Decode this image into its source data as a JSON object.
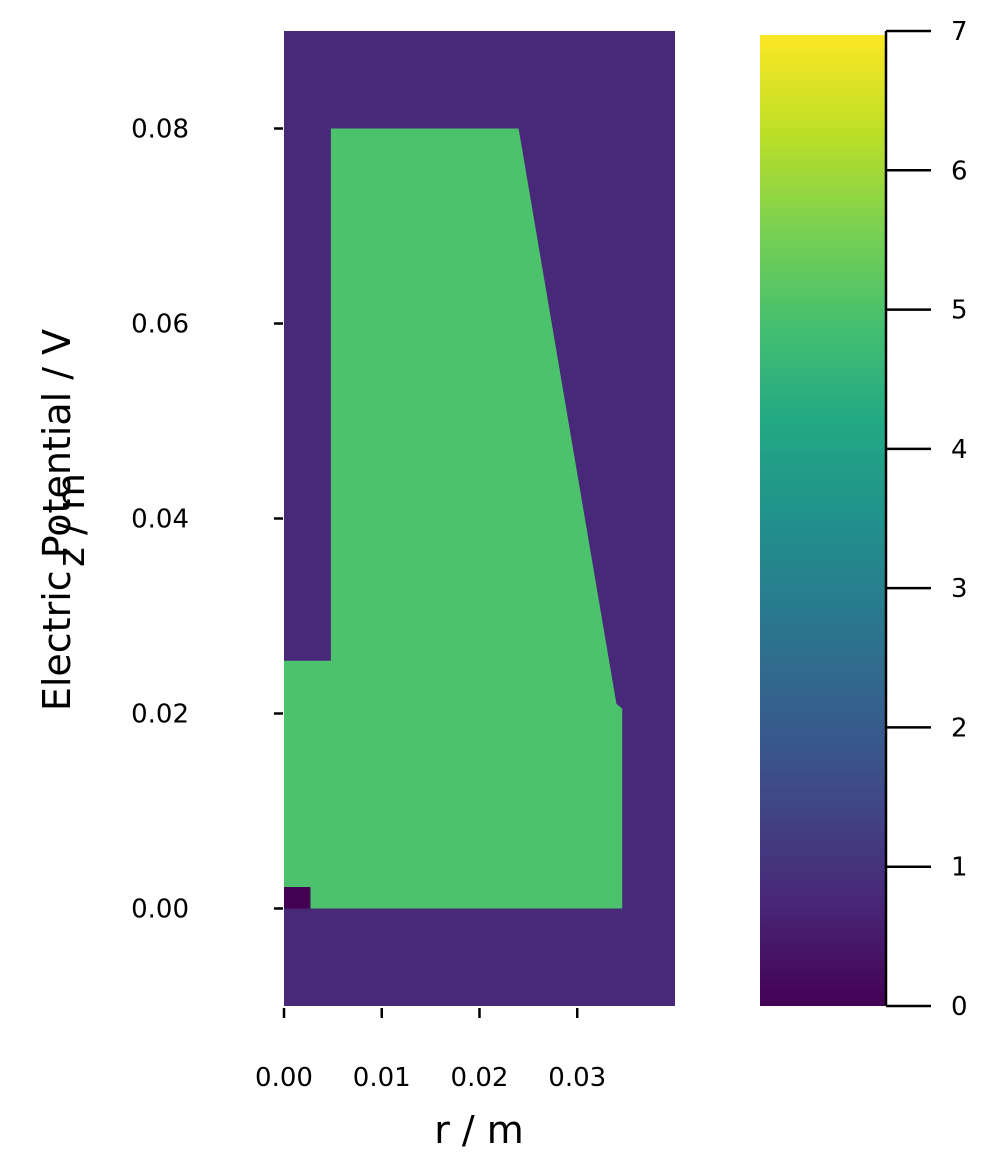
{
  "chart_data": {
    "type": "heatmap",
    "title": "",
    "xlabel": "r / m",
    "ylabel": "z / m",
    "xlim": [
      0.0,
      0.04
    ],
    "ylim": [
      -0.01,
      0.09
    ],
    "x_ticks": [
      {
        "value": 0.0,
        "label": "0.00"
      },
      {
        "value": 0.01,
        "label": "0.01"
      },
      {
        "value": 0.02,
        "label": "0.02"
      },
      {
        "value": 0.03,
        "label": "0.03"
      }
    ],
    "y_ticks": [
      {
        "value": 0.0,
        "label": "0.00"
      },
      {
        "value": 0.02,
        "label": "0.02"
      },
      {
        "value": 0.04,
        "label": "0.04"
      },
      {
        "value": 0.06,
        "label": "0.06"
      },
      {
        "value": 0.08,
        "label": "0.08"
      }
    ],
    "colormap": "viridis",
    "colorbar": {
      "label": "Electric Potential / V",
      "range": [
        0,
        7
      ],
      "ticks": [
        {
          "value": 0,
          "label": "0"
        },
        {
          "value": 1,
          "label": "1"
        },
        {
          "value": 2,
          "label": "2"
        },
        {
          "value": 3,
          "label": "3"
        },
        {
          "value": 4,
          "label": "4"
        },
        {
          "value": 5,
          "label": "5"
        },
        {
          "value": 6,
          "label": "6"
        },
        {
          "value": 7,
          "label": "7"
        }
      ]
    },
    "regions": [
      {
        "name": "background",
        "potential": 1.0,
        "color": "#482878",
        "polygon": [
          [
            0.0,
            -0.01
          ],
          [
            0.04,
            -0.01
          ],
          [
            0.04,
            0.09
          ],
          [
            0.0,
            0.09
          ]
        ]
      },
      {
        "name": "electrode",
        "potential": 5.2,
        "color": "#4cc26c",
        "polygon": [
          [
            0.0,
            0.0
          ],
          [
            0.0,
            0.0254
          ],
          [
            0.0048,
            0.0254
          ],
          [
            0.0048,
            0.08
          ],
          [
            0.024,
            0.08
          ],
          [
            0.034,
            0.021
          ],
          [
            0.0346,
            0.0205
          ],
          [
            0.0346,
            0.0
          ],
          [
            0.0027,
            0.0
          ],
          [
            0.0027,
            0.0022
          ],
          [
            0.0,
            0.0022
          ]
        ]
      },
      {
        "name": "source",
        "potential": 0.0,
        "color": "#440154",
        "polygon": [
          [
            0.0,
            0.0
          ],
          [
            0.0027,
            0.0
          ],
          [
            0.0027,
            0.0022
          ],
          [
            0.0,
            0.0022
          ]
        ]
      }
    ]
  }
}
